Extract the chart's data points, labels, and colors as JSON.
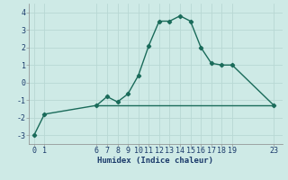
{
  "x": [
    0,
    1,
    6,
    7,
    8,
    9,
    10,
    11,
    12,
    13,
    14,
    15,
    16,
    17,
    18,
    19,
    23
  ],
  "y": [
    -3.0,
    -1.8,
    -1.3,
    -0.8,
    -1.1,
    -0.65,
    0.4,
    2.1,
    3.5,
    3.5,
    3.8,
    3.5,
    2.0,
    1.1,
    1.0,
    1.0,
    -1.3
  ],
  "hline_y": -1.3,
  "hline_xmin": 6,
  "hline_xmax": 23,
  "line_color": "#1a6b5a",
  "bg_color": "#ceeae6",
  "grid_color": "#b8d8d4",
  "xlabel": "Humidex (Indice chaleur)",
  "xlim": [
    -0.5,
    23.8
  ],
  "ylim": [
    -3.5,
    4.5
  ],
  "xticks": [
    0,
    1,
    6,
    7,
    8,
    9,
    10,
    11,
    12,
    13,
    14,
    15,
    16,
    17,
    18,
    19,
    23
  ],
  "yticks": [
    -3,
    -2,
    -1,
    0,
    1,
    2,
    3,
    4
  ],
  "marker": "D",
  "marker_size": 2.2,
  "line_width": 1.0,
  "font_size": 6.0,
  "xlabel_fontsize": 6.5
}
